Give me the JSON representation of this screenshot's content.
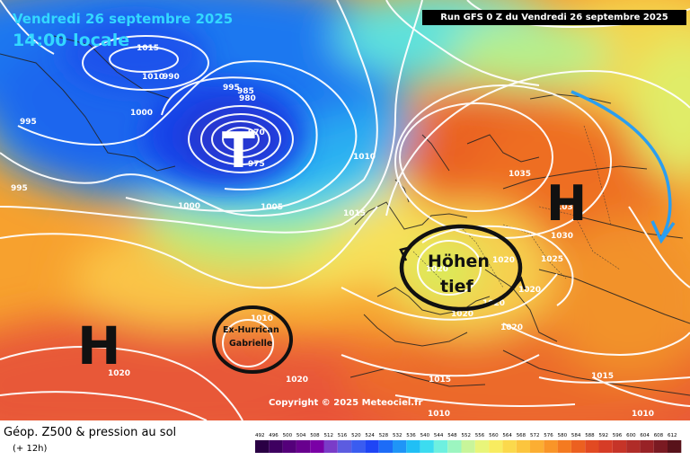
{
  "header": {
    "date_line": "Vendredi 26 septembre 2025",
    "time_line": "14:00 locale",
    "run_info": "Run GFS 0 Z du Vendredi 26 septembre 2025"
  },
  "footer": {
    "title": "Géop. Z500 & pression au sol",
    "subtitle": "(+ 12h)",
    "copyright": "Copyright © 2025 Meteociel.fr"
  },
  "pressure_centers": [
    {
      "id": "low-atlantic",
      "letter": "T"
    },
    {
      "id": "high-azores",
      "letter": "H"
    },
    {
      "id": "high-russia",
      "letter": "H"
    }
  ],
  "annotations": {
    "hoehentief_line1": "Höhen",
    "hoehentief_line2": "tief",
    "gabrielle_line1": "Ex-Hurrican",
    "gabrielle_line2": "Gabrielle"
  },
  "isobar_labels": [
    "1015",
    "1010",
    "1005",
    "1000",
    "995",
    "990",
    "985",
    "980",
    "975",
    "970",
    "995",
    "995",
    "1000",
    "1005",
    "1010",
    "1015",
    "1020",
    "1010",
    "1005",
    "1020",
    "1020",
    "1020",
    "1025",
    "1030",
    "1035",
    "1035",
    "1020",
    "1020",
    "1015",
    "1020",
    "1015",
    "1010",
    "1010",
    "1020"
  ],
  "legend": {
    "ticks": [
      "492",
      "496",
      "500",
      "504",
      "508",
      "512",
      "516",
      "520",
      "524",
      "528",
      "532",
      "536",
      "540",
      "544",
      "548",
      "552",
      "556",
      "560",
      "564",
      "568",
      "572",
      "576",
      "580",
      "584",
      "588",
      "592",
      "596",
      "600",
      "604",
      "608",
      "612"
    ],
    "colors": [
      "#2a0044",
      "#3e0060",
      "#54007a",
      "#68008e",
      "#7a00a6",
      "#7a3cc8",
      "#5c5ce0",
      "#3a5cf0",
      "#1f45f5",
      "#1d6cf7",
      "#1f95f7",
      "#20bff5",
      "#3cdcf0",
      "#6ef0e0",
      "#9cf5c0",
      "#c8f59a",
      "#e8f57a",
      "#f8ec60",
      "#fbd94c",
      "#fcc53e",
      "#fcae32",
      "#f99528",
      "#f47a20",
      "#ec6020",
      "#e24a22",
      "#d63c26",
      "#c63428",
      "#b02c28",
      "#982226",
      "#7a1a22",
      "#58121a"
    ]
  }
}
